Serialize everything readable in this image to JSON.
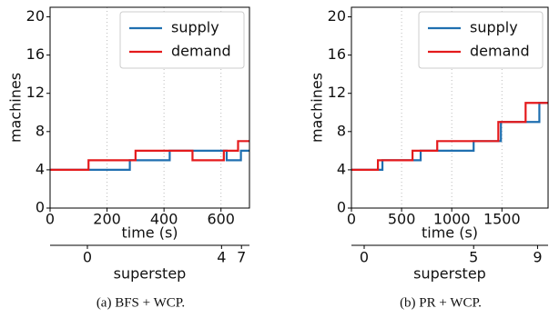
{
  "chart_data": [
    {
      "type": "step",
      "caption": "(a) BFS + WCP.",
      "xlabel": "time (s)",
      "ylabel": "machines",
      "xlim": [
        0,
        700
      ],
      "xticks": [
        0,
        200,
        400,
        600
      ],
      "ylim": [
        0,
        21
      ],
      "yticks": [
        0,
        4,
        8,
        12,
        16,
        20
      ],
      "grid": "x",
      "legend": "upper right",
      "x2label": "superstep",
      "x2ticks": [
        {
          "value": 131,
          "label": "0"
        },
        {
          "value": 602,
          "label": "4"
        },
        {
          "value": 672,
          "label": "7"
        }
      ],
      "series": [
        {
          "name": "supply",
          "color": "#1f6fb0",
          "x": [
            0,
            280,
            420,
            620,
            670,
            700
          ],
          "values": [
            4,
            5,
            6,
            5,
            6,
            6
          ]
        },
        {
          "name": "demand",
          "color": "#e41a1c",
          "x": [
            0,
            135,
            300,
            500,
            610,
            660,
            700
          ],
          "values": [
            4,
            5,
            6,
            5,
            6,
            7,
            7
          ]
        }
      ]
    },
    {
      "type": "step",
      "caption": "(b) PR + WCP.",
      "xlabel": "time (s)",
      "ylabel": "machines",
      "xlim": [
        0,
        1960
      ],
      "xticks": [
        0,
        500,
        1000,
        1500
      ],
      "ylim": [
        0,
        21
      ],
      "yticks": [
        0,
        4,
        8,
        12,
        16,
        20
      ],
      "grid": "x",
      "legend": "upper right",
      "x2label": "superstep",
      "x2ticks": [
        {
          "value": 127,
          "label": "0"
        },
        {
          "value": 1218,
          "label": "5"
        },
        {
          "value": 1855,
          "label": "9"
        }
      ],
      "series": [
        {
          "name": "supply",
          "color": "#1f6fb0",
          "x": [
            0,
            309,
            690,
            1218,
            1490,
            1873,
            1960
          ],
          "values": [
            4,
            5,
            6,
            7,
            9,
            11,
            11
          ]
        },
        {
          "name": "demand",
          "color": "#e41a1c",
          "x": [
            0,
            264,
            609,
            855,
            1464,
            1736,
            1960
          ],
          "values": [
            4,
            5,
            6,
            7,
            9,
            11,
            11
          ]
        }
      ]
    }
  ]
}
